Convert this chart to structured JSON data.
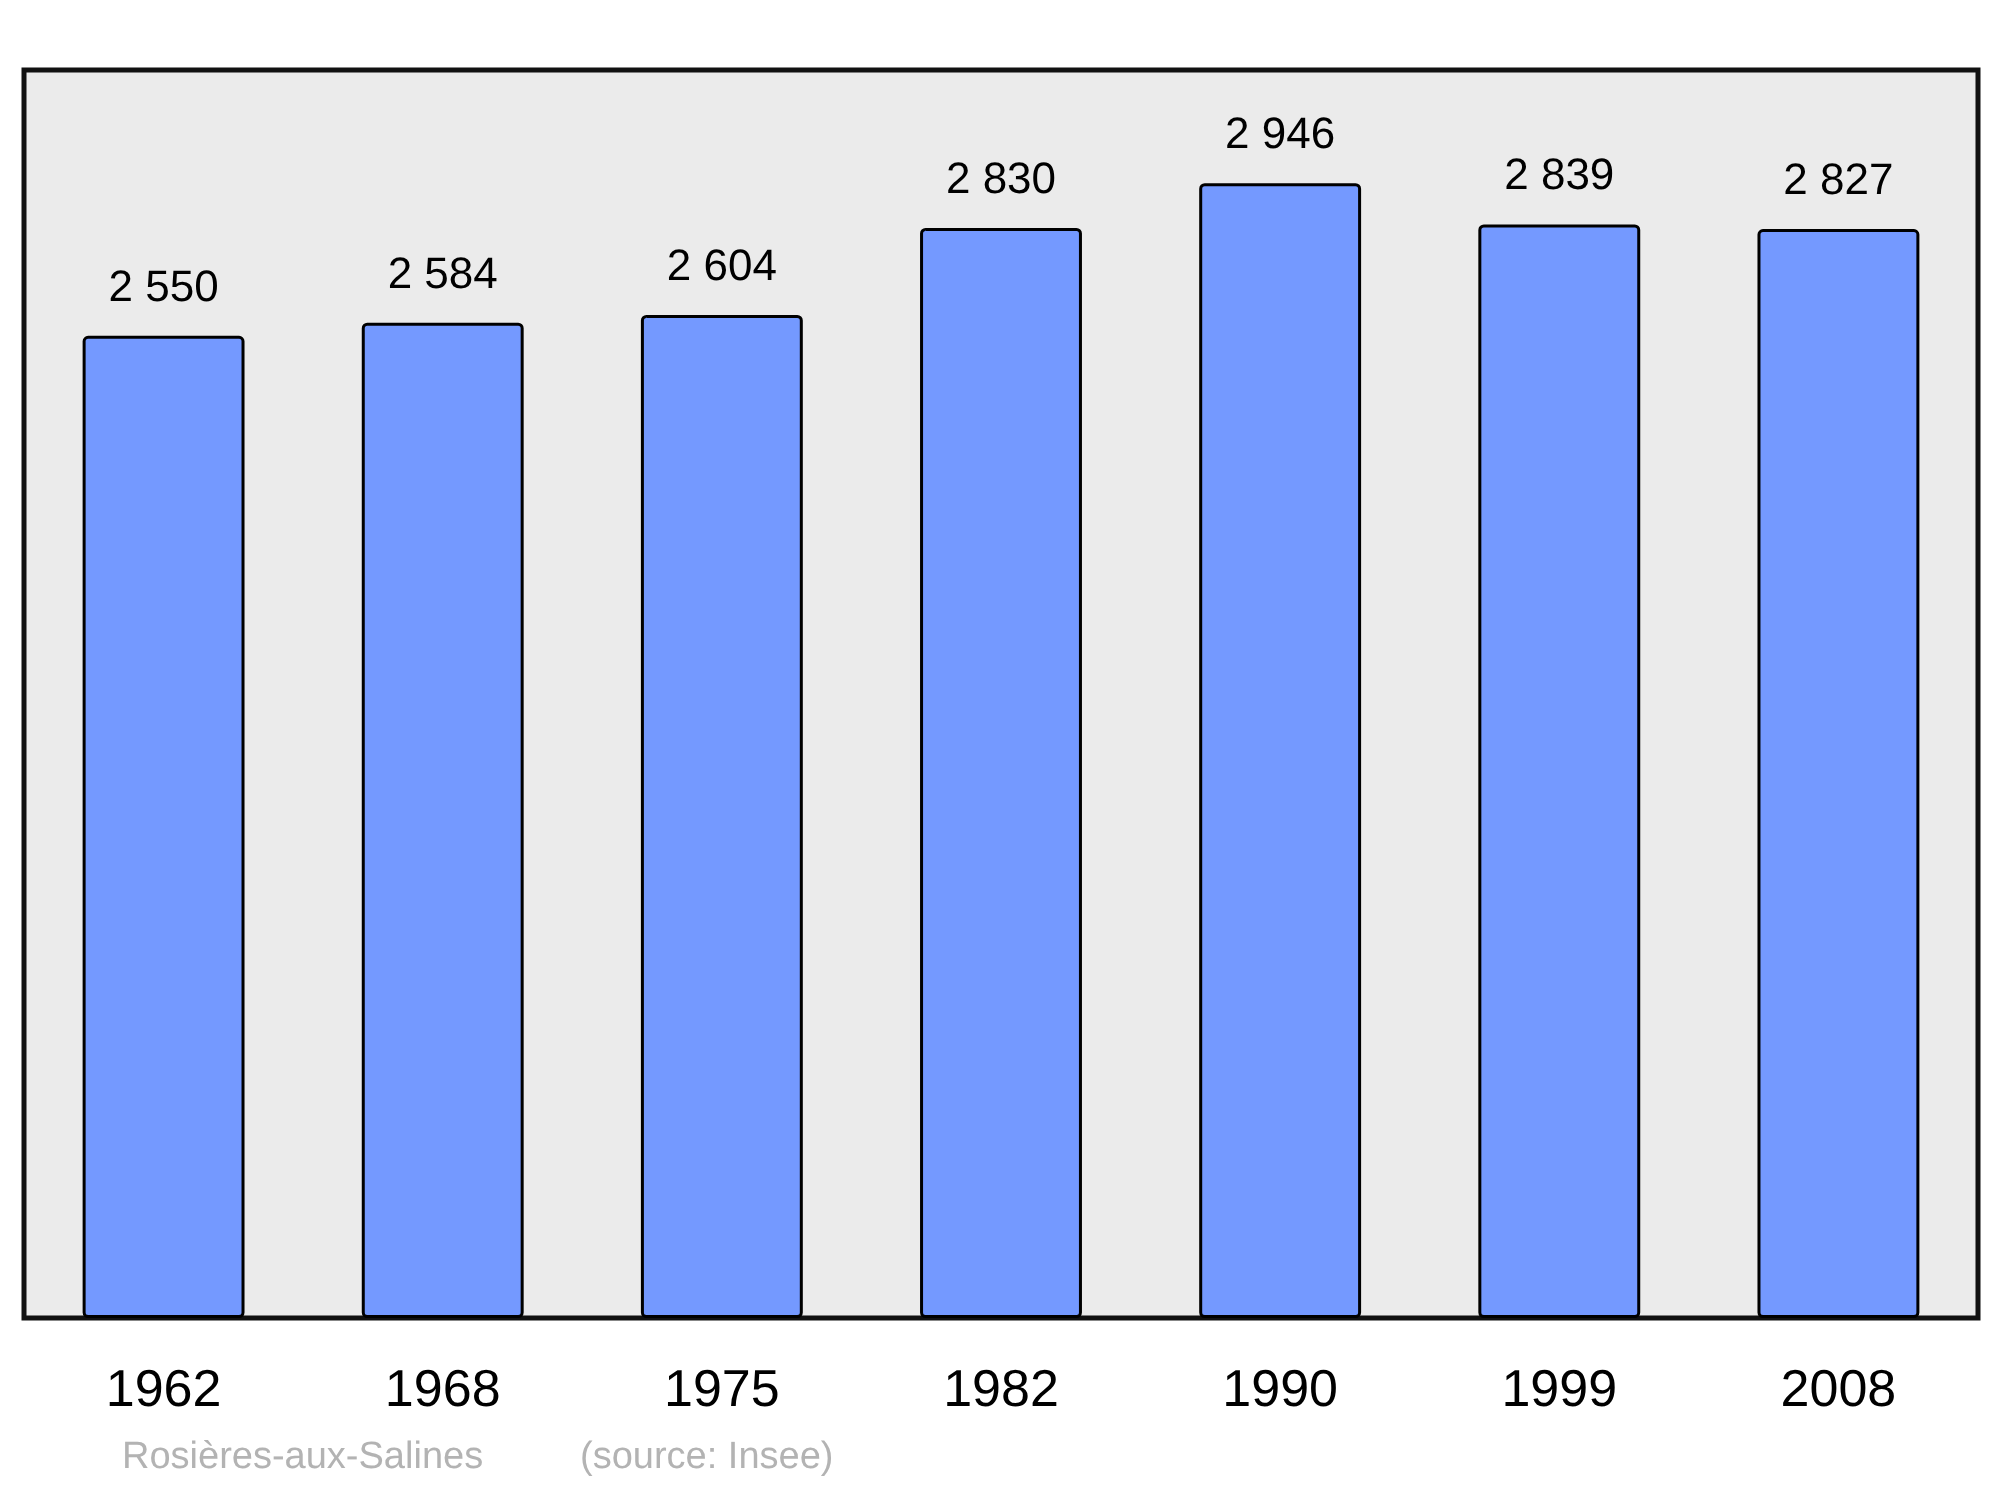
{
  "chart_data": {
    "type": "bar",
    "categories": [
      "1962",
      "1968",
      "1975",
      "1982",
      "1990",
      "1999",
      "2008"
    ],
    "values": [
      2550,
      2584,
      2604,
      2830,
      2946,
      2839,
      2827
    ],
    "value_labels": [
      "2 550",
      "2 584",
      "2 604",
      "2 830",
      "2 946",
      "2 839",
      "2 827"
    ],
    "color": "#7499ff",
    "ylim": [
      0,
      3240
    ],
    "tick_labels": "x",
    "annotations": [
      "Rosières-aux-Salines",
      "(source: Insee)"
    ]
  }
}
